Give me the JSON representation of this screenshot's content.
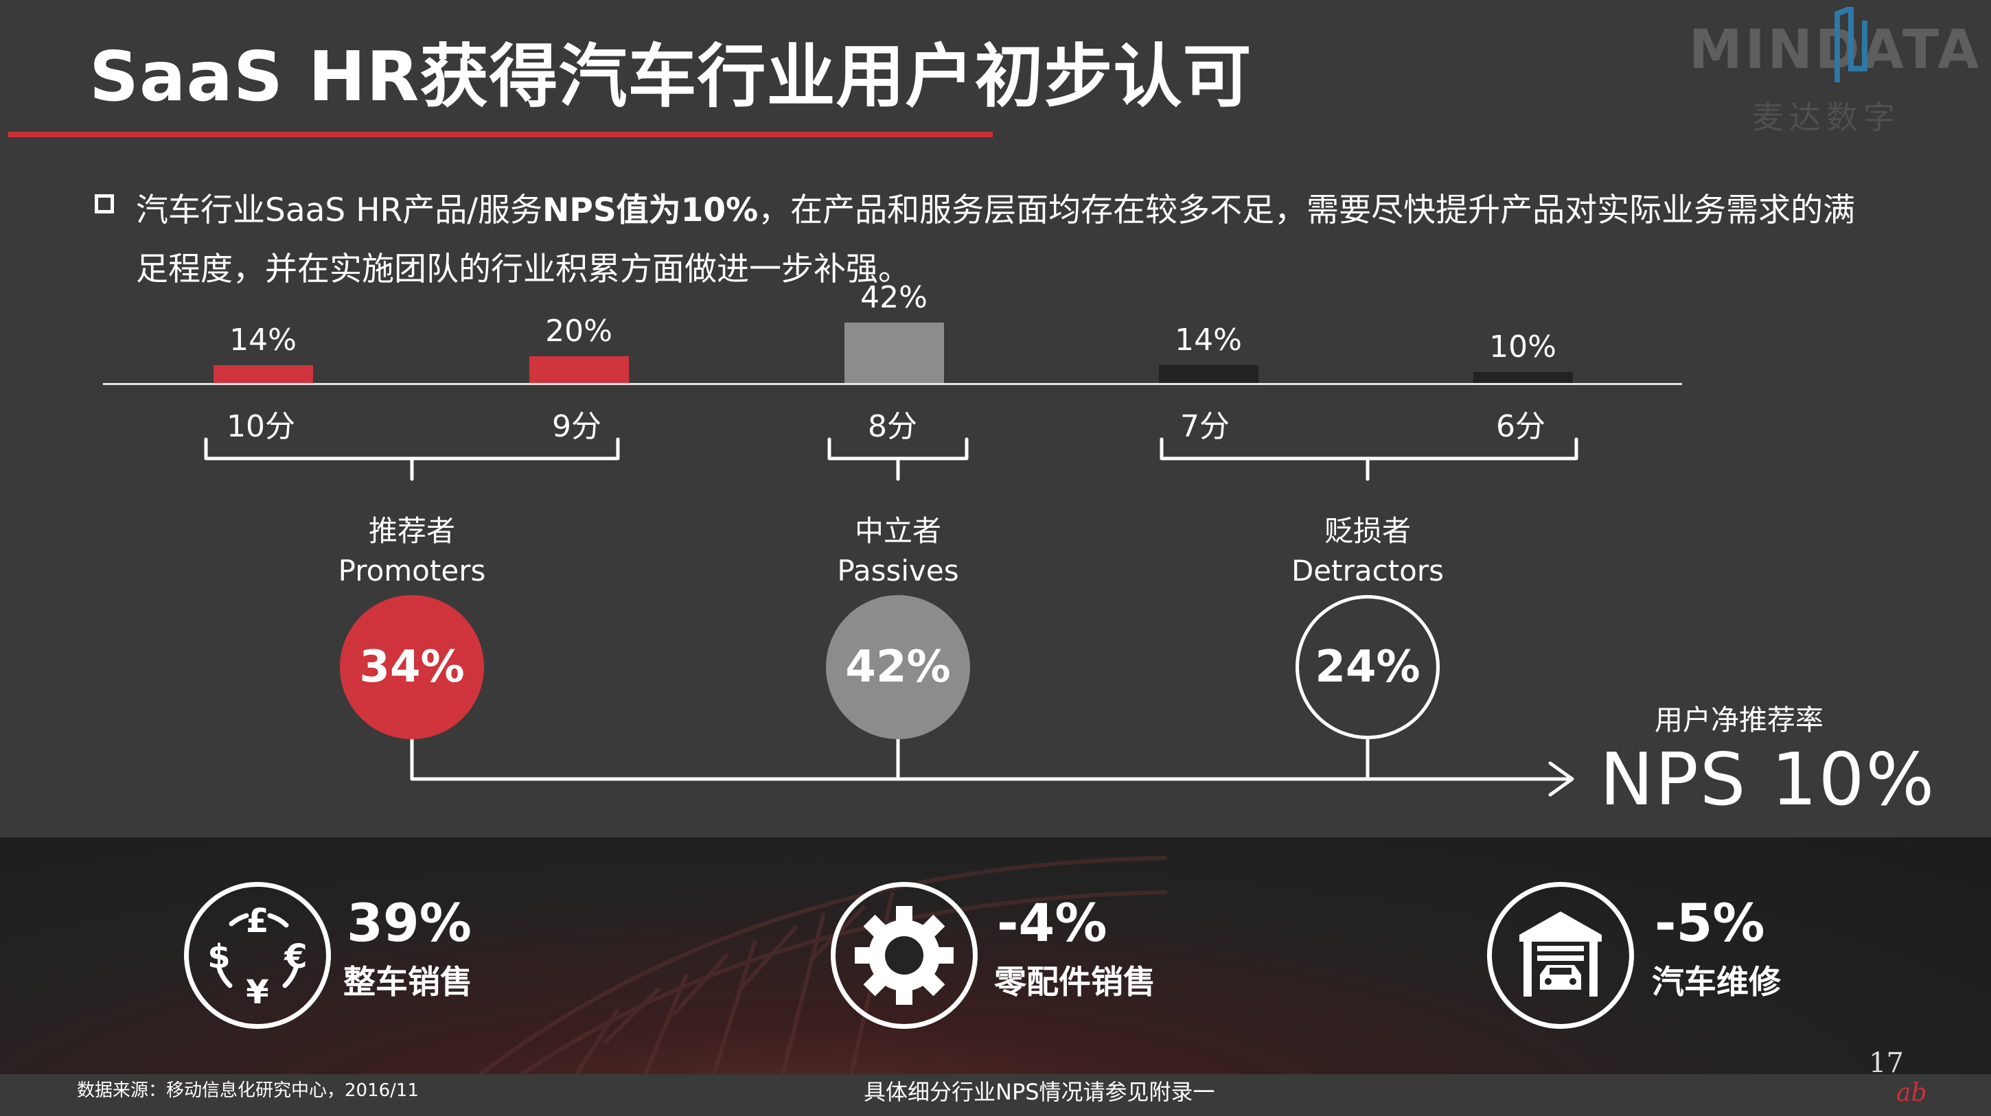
{
  "title": "SaaS HR获得汽车行业用户初步认可",
  "logo": {
    "brand": "MINDATA",
    "brand_cn": "麦达数字"
  },
  "bullet": {
    "text_a": "汽车行业SaaS HR产品/服务",
    "text_bold": "NPS值为10%",
    "text_b": "，在产品和服务层面均存在较多不足，需要尽快提升产品对实际业务需求的满",
    "text_c": "足程度，并在实施团队的行业积累方面做进一步补强。"
  },
  "chart_data": {
    "type": "bar",
    "categories": [
      "10分",
      "9分",
      "8分",
      "7分",
      "6分"
    ],
    "values": [
      14,
      20,
      42,
      14,
      10
    ],
    "value_labels": [
      "14%",
      "20%",
      "42%",
      "14%",
      "10%"
    ],
    "ylim": [
      0,
      42
    ],
    "colors": [
      "#d0343c",
      "#d0343c",
      "#8c8c8c",
      "#222222",
      "#222222"
    ]
  },
  "groups": [
    {
      "cn": "推荐者",
      "en": "Promoters",
      "pct": "34%",
      "fill": "#d0343c",
      "border": "#d0343c"
    },
    {
      "cn": "中立者",
      "en": "Passives",
      "pct": "42%",
      "fill": "#8c8c8c",
      "border": "#8c8c8c"
    },
    {
      "cn": "贬损者",
      "en": "Detractors",
      "pct": "24%",
      "fill": "transparent",
      "border": "#ffffff"
    }
  ],
  "nps": {
    "label": "用户净推荐率",
    "value": "NPS  10%"
  },
  "kpis": [
    {
      "value": "39%",
      "label": "整车销售",
      "icon": "currency-exchange-icon"
    },
    {
      "value": "-4%",
      "label": "零配件销售",
      "icon": "gear-icon"
    },
    {
      "value": "-5%",
      "label": "汽车维修",
      "icon": "car-garage-icon"
    }
  ],
  "footer": {
    "source": "数据来源：移动信息化研究中心，2016/11",
    "note": "具体细分行业NPS情况请参见附录一",
    "page": "17"
  }
}
